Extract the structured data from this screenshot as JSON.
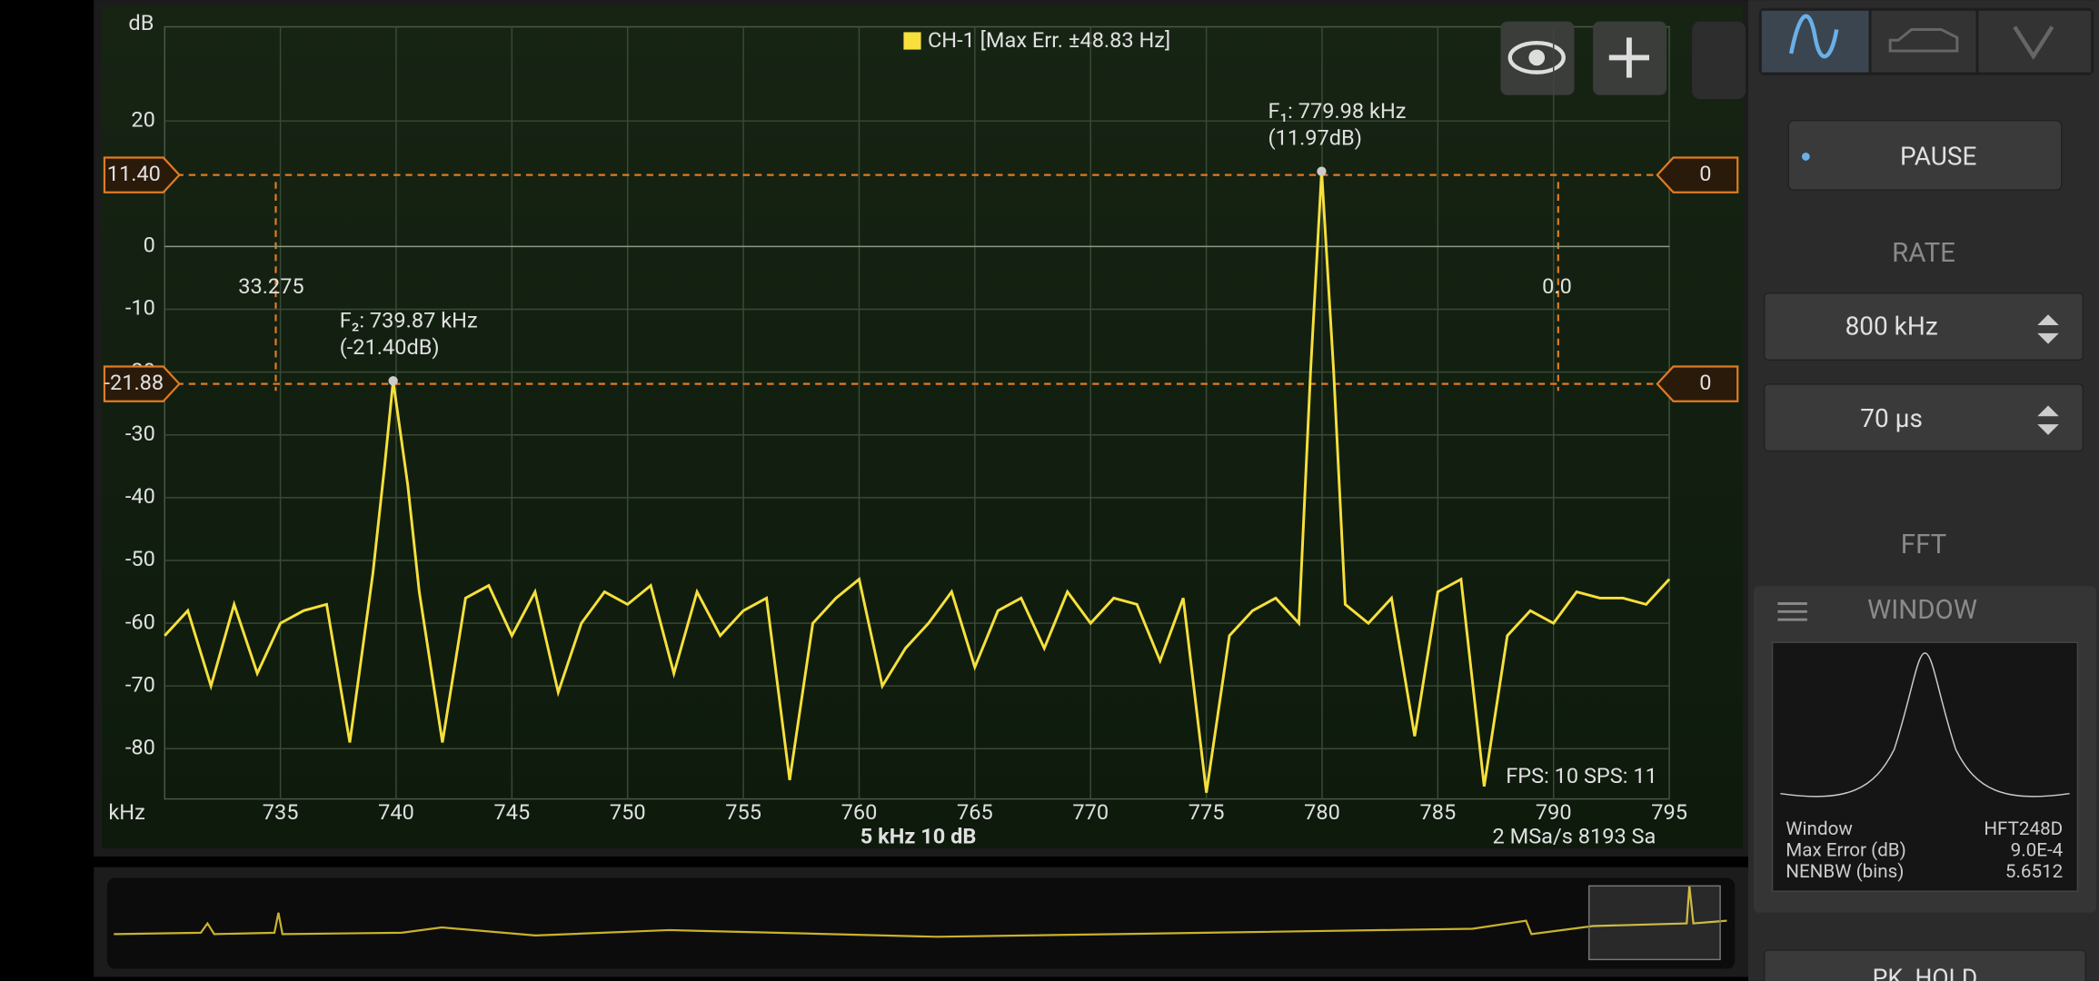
{
  "chart_data": {
    "type": "line",
    "ylabel": "dB",
    "xlabel": "kHz",
    "legend": "CH-1 [Max Err. ±48.83 Hz]",
    "xlim": [
      730,
      795
    ],
    "xticks": [
      735,
      740,
      745,
      750,
      755,
      760,
      765,
      770,
      775,
      780,
      785,
      790,
      795
    ],
    "ylim": [
      -88,
      35
    ],
    "yticks": [
      20,
      0,
      -10,
      -20,
      -30,
      -40,
      -50,
      -60,
      -70,
      -80
    ],
    "grid": true,
    "series": [
      {
        "name": "CH-1",
        "color": "#f7e03c",
        "x": [
          730,
          731,
          732,
          733,
          734,
          735,
          736,
          737,
          738,
          739,
          739.5,
          739.87,
          740.5,
          741,
          742,
          743,
          744,
          745,
          746,
          747,
          748,
          749,
          750,
          751,
          752,
          753,
          754,
          755,
          756,
          757,
          758,
          759,
          760,
          761,
          762,
          763,
          764,
          765,
          766,
          767,
          768,
          769,
          770,
          771,
          772,
          773,
          774,
          775,
          776,
          777,
          778,
          779,
          779.5,
          779.98,
          780.5,
          781,
          782,
          783,
          784,
          785,
          786,
          787,
          788,
          789,
          790,
          791,
          792,
          793,
          794,
          795
        ],
        "values": [
          -62,
          -58,
          -70,
          -57,
          -68,
          -60,
          -58,
          -57,
          -79,
          -52,
          -35,
          -21.4,
          -38,
          -55,
          -79,
          -56,
          -54,
          -62,
          -55,
          -71,
          -60,
          -55,
          -57,
          -54,
          -68,
          -55,
          -62,
          -58,
          -56,
          -85,
          -60,
          -56,
          -53,
          -70,
          -64,
          -60,
          -55,
          -67,
          -58,
          -56,
          -64,
          -55,
          -60,
          -56,
          -57,
          -66,
          -56,
          -87,
          -62,
          -58,
          -56,
          -60,
          -20,
          11.97,
          -20,
          -57,
          -60,
          -56,
          -78,
          -55,
          -53,
          -86,
          -62,
          -58,
          -60,
          -55,
          -56,
          -56,
          -57,
          -53
        ]
      }
    ],
    "peaks": [
      {
        "index": 53,
        "label": "F₁: 779.98 kHz",
        "level": "(11.97dB)"
      },
      {
        "index": 11,
        "label": "F₂: 739.87 kHz",
        "level": "(-21.40dB)"
      }
    ],
    "cursors": [
      {
        "value": 11.4,
        "label": "11.40",
        "right": "0"
      },
      {
        "value": -21.88,
        "right": "0"
      }
    ],
    "vcursor_labels": [
      "33.275",
      "0.0"
    ],
    "scale": "5 kHz  10 dB",
    "sample": "2 MSa/s  8193 Sa",
    "fps": "FPS: 10  SPS: 11"
  },
  "sidebar": {
    "pause": "PAUSE",
    "rate": "RATE",
    "rate_value": "800 kHz",
    "time_value": "70 µs",
    "fft": "FFT",
    "window": "WINDOW",
    "window_info": [
      [
        "Window",
        "HFT248D"
      ],
      [
        "Max Error (dB)",
        "9.0E-4"
      ],
      [
        "NENBW (bins)",
        "5.6512"
      ]
    ],
    "pk_hold": "PK. HOLD"
  }
}
